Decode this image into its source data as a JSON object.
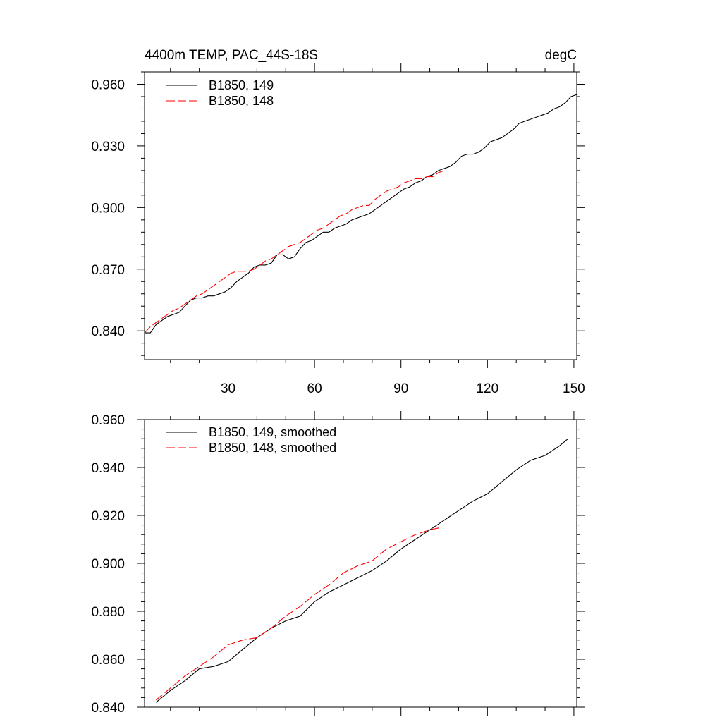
{
  "chart_data": [
    {
      "type": "line",
      "title": "4400m TEMP, PAC_44S-18S",
      "units_label": "degC",
      "xlabel": "",
      "ylabel": "",
      "xlim": [
        1,
        151
      ],
      "ylim": [
        0.826,
        0.966
      ],
      "xticks": [
        30,
        60,
        90,
        120,
        150
      ],
      "xtick_labels": [
        "30",
        "60",
        "90",
        "120",
        "150"
      ],
      "yticks": [
        0.84,
        0.87,
        0.9,
        0.93,
        0.96
      ],
      "ytick_labels": [
        "0.840",
        "0.870",
        "0.900",
        "0.930",
        "0.960"
      ],
      "grid": false,
      "legend": "top-left",
      "series": [
        {
          "name": "B1850, 149",
          "color": "#000000",
          "dash": "solid",
          "x": [
            1,
            3,
            5,
            7,
            9,
            11,
            13,
            15,
            17,
            19,
            21,
            23,
            25,
            27,
            29,
            31,
            33,
            35,
            37,
            39,
            41,
            43,
            45,
            47,
            49,
            51,
            53,
            55,
            57,
            59,
            61,
            63,
            65,
            67,
            69,
            71,
            73,
            75,
            77,
            79,
            81,
            83,
            85,
            87,
            89,
            91,
            93,
            95,
            97,
            99,
            101,
            103,
            105,
            107,
            109,
            111,
            113,
            115,
            117,
            119,
            121,
            123,
            125,
            127,
            129,
            131,
            133,
            135,
            137,
            139,
            141,
            143,
            145,
            147,
            149,
            151
          ],
          "y": [
            0.839,
            0.839,
            0.843,
            0.845,
            0.847,
            0.848,
            0.849,
            0.852,
            0.855,
            0.856,
            0.856,
            0.857,
            0.857,
            0.858,
            0.859,
            0.861,
            0.864,
            0.866,
            0.868,
            0.871,
            0.872,
            0.872,
            0.873,
            0.877,
            0.877,
            0.875,
            0.876,
            0.88,
            0.883,
            0.884,
            0.886,
            0.888,
            0.888,
            0.89,
            0.891,
            0.892,
            0.894,
            0.895,
            0.896,
            0.897,
            0.899,
            0.901,
            0.903,
            0.905,
            0.907,
            0.909,
            0.91,
            0.912,
            0.913,
            0.915,
            0.916,
            0.918,
            0.919,
            0.92,
            0.922,
            0.925,
            0.926,
            0.926,
            0.927,
            0.929,
            0.932,
            0.933,
            0.934,
            0.936,
            0.938,
            0.941,
            0.942,
            0.943,
            0.944,
            0.945,
            0.946,
            0.948,
            0.949,
            0.951,
            0.954,
            0.955
          ]
        },
        {
          "name": "B1850, 148",
          "color": "#ff0000",
          "dash": "dashed",
          "x": [
            1,
            3,
            5,
            7,
            9,
            11,
            13,
            15,
            17,
            19,
            21,
            23,
            25,
            27,
            29,
            31,
            33,
            35,
            37,
            39,
            41,
            43,
            45,
            47,
            49,
            51,
            53,
            55,
            57,
            59,
            61,
            63,
            65,
            67,
            69,
            71,
            73,
            75,
            77,
            79,
            81,
            83,
            85,
            87,
            89,
            91,
            93,
            95,
            97,
            99,
            101,
            103,
            105
          ],
          "y": [
            0.839,
            0.842,
            0.844,
            0.846,
            0.848,
            0.85,
            0.851,
            0.853,
            0.855,
            0.857,
            0.858,
            0.86,
            0.862,
            0.864,
            0.866,
            0.868,
            0.869,
            0.869,
            0.869,
            0.87,
            0.872,
            0.874,
            0.875,
            0.877,
            0.879,
            0.881,
            0.882,
            0.883,
            0.885,
            0.887,
            0.889,
            0.89,
            0.892,
            0.894,
            0.896,
            0.897,
            0.899,
            0.9,
            0.901,
            0.901,
            0.904,
            0.906,
            0.908,
            0.909,
            0.91,
            0.912,
            0.913,
            0.914,
            0.914,
            0.915,
            0.915,
            0.917,
            0.918
          ]
        }
      ]
    },
    {
      "type": "line",
      "title": "",
      "xlabel": "",
      "ylabel": "",
      "xlim": [
        1,
        151
      ],
      "ylim": [
        0.84,
        0.96
      ],
      "xticks": [
        30,
        60,
        90,
        120,
        150
      ],
      "yticks": [
        0.84,
        0.86,
        0.88,
        0.9,
        0.92,
        0.94,
        0.96
      ],
      "ytick_labels": [
        "0.840",
        "0.860",
        "0.880",
        "0.900",
        "0.920",
        "0.940",
        "0.960"
      ],
      "grid": false,
      "legend": "top-left",
      "series": [
        {
          "name": "B1850, 149, smoothed",
          "color": "#000000",
          "dash": "solid",
          "x": [
            5,
            10,
            15,
            20,
            25,
            30,
            35,
            40,
            45,
            50,
            55,
            60,
            65,
            70,
            75,
            80,
            85,
            90,
            95,
            100,
            105,
            110,
            115,
            120,
            125,
            130,
            135,
            140,
            145,
            148
          ],
          "y": [
            0.842,
            0.847,
            0.851,
            0.856,
            0.857,
            0.859,
            0.864,
            0.869,
            0.873,
            0.876,
            0.878,
            0.884,
            0.888,
            0.891,
            0.894,
            0.897,
            0.901,
            0.906,
            0.91,
            0.914,
            0.918,
            0.922,
            0.926,
            0.929,
            0.934,
            0.939,
            0.943,
            0.945,
            0.949,
            0.952
          ]
        },
        {
          "name": "B1850, 148, smoothed",
          "color": "#ff0000",
          "dash": "dashed",
          "x": [
            5,
            10,
            15,
            20,
            25,
            30,
            35,
            40,
            45,
            50,
            55,
            60,
            65,
            70,
            75,
            80,
            85,
            90,
            95,
            100,
            104
          ],
          "y": [
            0.843,
            0.848,
            0.853,
            0.857,
            0.861,
            0.866,
            0.868,
            0.869,
            0.873,
            0.878,
            0.882,
            0.887,
            0.891,
            0.896,
            0.899,
            0.901,
            0.906,
            0.909,
            0.912,
            0.914,
            0.915
          ]
        }
      ]
    }
  ]
}
